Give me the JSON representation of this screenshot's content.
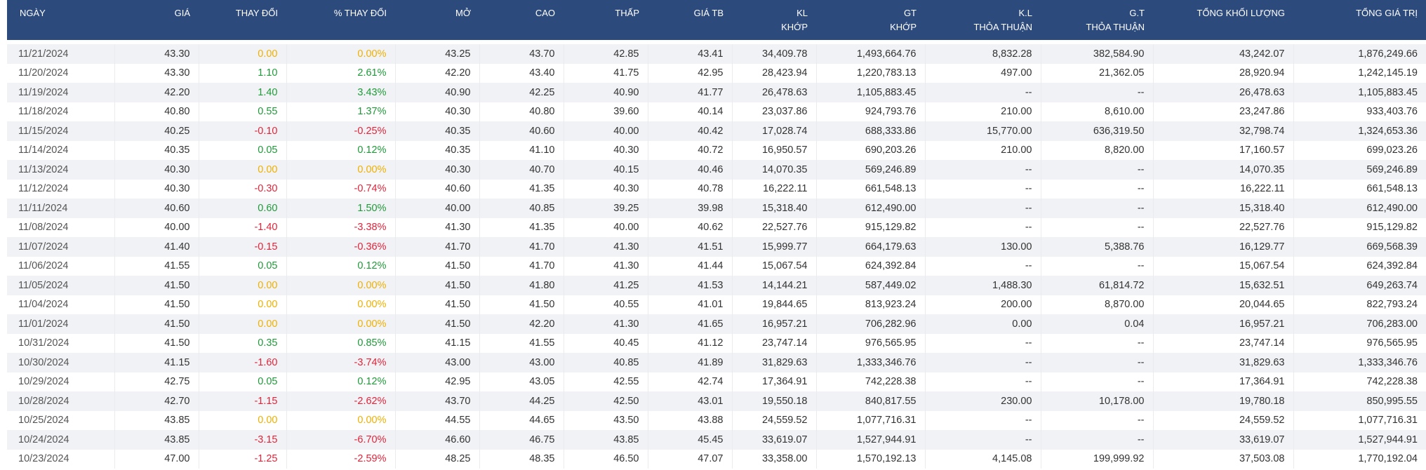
{
  "headers": {
    "date": "NGÀY",
    "price": "GIÁ",
    "change": "THAY ĐỔI",
    "pct_change": "% THAY ĐỔI",
    "open": "MỞ",
    "high": "CAO",
    "low": "THẤP",
    "avg": "GIÁ TB",
    "matched_vol_1": "KL",
    "matched_vol_2": "KHỚP",
    "matched_val_1": "GT",
    "matched_val_2": "KHỚP",
    "deal_vol_1": "K.L",
    "deal_vol_2": "THỎA THUẬN",
    "deal_val_1": "G.T",
    "deal_val_2": "THỎA THUẬN",
    "total_vol": "TỔNG KHỐI LƯỢNG",
    "total_val": "TỔNG GIÁ TRỊ"
  },
  "colors": {
    "header_bg": "#2d4a7c",
    "up": "#1f9a39",
    "down": "#e0253b",
    "flat": "#efb000"
  },
  "rows": [
    {
      "date": "11/21/2024",
      "price": "43.30",
      "change": "0.00",
      "pct": "0.00%",
      "trend": "flat",
      "open": "43.25",
      "high": "43.70",
      "low": "42.85",
      "avg": "43.41",
      "kl_khop": "34,409.78",
      "gt_khop": "1,493,664.76",
      "kl_tt": "8,832.28",
      "gt_tt": "382,584.90",
      "total_kl": "43,242.07",
      "total_gt": "1,876,249.66"
    },
    {
      "date": "11/20/2024",
      "price": "43.30",
      "change": "1.10",
      "pct": "2.61%",
      "trend": "up",
      "open": "42.20",
      "high": "43.40",
      "low": "41.75",
      "avg": "42.95",
      "kl_khop": "28,423.94",
      "gt_khop": "1,220,783.13",
      "kl_tt": "497.00",
      "gt_tt": "21,362.05",
      "total_kl": "28,920.94",
      "total_gt": "1,242,145.19"
    },
    {
      "date": "11/19/2024",
      "price": "42.20",
      "change": "1.40",
      "pct": "3.43%",
      "trend": "up",
      "open": "40.90",
      "high": "42.25",
      "low": "40.90",
      "avg": "41.77",
      "kl_khop": "26,478.63",
      "gt_khop": "1,105,883.45",
      "kl_tt": "--",
      "gt_tt": "--",
      "total_kl": "26,478.63",
      "total_gt": "1,105,883.45"
    },
    {
      "date": "11/18/2024",
      "price": "40.80",
      "change": "0.55",
      "pct": "1.37%",
      "trend": "up",
      "open": "40.30",
      "high": "40.80",
      "low": "39.60",
      "avg": "40.14",
      "kl_khop": "23,037.86",
      "gt_khop": "924,793.76",
      "kl_tt": "210.00",
      "gt_tt": "8,610.00",
      "total_kl": "23,247.86",
      "total_gt": "933,403.76"
    },
    {
      "date": "11/15/2024",
      "price": "40.25",
      "change": "-0.10",
      "pct": "-0.25%",
      "trend": "down",
      "open": "40.35",
      "high": "40.60",
      "low": "40.00",
      "avg": "40.42",
      "kl_khop": "17,028.74",
      "gt_khop": "688,333.86",
      "kl_tt": "15,770.00",
      "gt_tt": "636,319.50",
      "total_kl": "32,798.74",
      "total_gt": "1,324,653.36"
    },
    {
      "date": "11/14/2024",
      "price": "40.35",
      "change": "0.05",
      "pct": "0.12%",
      "trend": "up",
      "open": "40.35",
      "high": "41.10",
      "low": "40.30",
      "avg": "40.72",
      "kl_khop": "16,950.57",
      "gt_khop": "690,203.26",
      "kl_tt": "210.00",
      "gt_tt": "8,820.00",
      "total_kl": "17,160.57",
      "total_gt": "699,023.26"
    },
    {
      "date": "11/13/2024",
      "price": "40.30",
      "change": "0.00",
      "pct": "0.00%",
      "trend": "flat",
      "open": "40.30",
      "high": "40.70",
      "low": "40.15",
      "avg": "40.46",
      "kl_khop": "14,070.35",
      "gt_khop": "569,246.89",
      "kl_tt": "--",
      "gt_tt": "--",
      "total_kl": "14,070.35",
      "total_gt": "569,246.89"
    },
    {
      "date": "11/12/2024",
      "price": "40.30",
      "change": "-0.30",
      "pct": "-0.74%",
      "trend": "down",
      "open": "40.60",
      "high": "41.35",
      "low": "40.30",
      "avg": "40.78",
      "kl_khop": "16,222.11",
      "gt_khop": "661,548.13",
      "kl_tt": "--",
      "gt_tt": "--",
      "total_kl": "16,222.11",
      "total_gt": "661,548.13"
    },
    {
      "date": "11/11/2024",
      "price": "40.60",
      "change": "0.60",
      "pct": "1.50%",
      "trend": "up",
      "open": "40.00",
      "high": "40.85",
      "low": "39.25",
      "avg": "39.98",
      "kl_khop": "15,318.40",
      "gt_khop": "612,490.00",
      "kl_tt": "--",
      "gt_tt": "--",
      "total_kl": "15,318.40",
      "total_gt": "612,490.00"
    },
    {
      "date": "11/08/2024",
      "price": "40.00",
      "change": "-1.40",
      "pct": "-3.38%",
      "trend": "down",
      "open": "41.30",
      "high": "41.35",
      "low": "40.00",
      "avg": "40.62",
      "kl_khop": "22,527.76",
      "gt_khop": "915,129.82",
      "kl_tt": "--",
      "gt_tt": "--",
      "total_kl": "22,527.76",
      "total_gt": "915,129.82"
    },
    {
      "date": "11/07/2024",
      "price": "41.40",
      "change": "-0.15",
      "pct": "-0.36%",
      "trend": "down",
      "open": "41.70",
      "high": "41.70",
      "low": "41.30",
      "avg": "41.51",
      "kl_khop": "15,999.77",
      "gt_khop": "664,179.63",
      "kl_tt": "130.00",
      "gt_tt": "5,388.76",
      "total_kl": "16,129.77",
      "total_gt": "669,568.39"
    },
    {
      "date": "11/06/2024",
      "price": "41.55",
      "change": "0.05",
      "pct": "0.12%",
      "trend": "up",
      "open": "41.50",
      "high": "41.70",
      "low": "41.30",
      "avg": "41.44",
      "kl_khop": "15,067.54",
      "gt_khop": "624,392.84",
      "kl_tt": "--",
      "gt_tt": "--",
      "total_kl": "15,067.54",
      "total_gt": "624,392.84"
    },
    {
      "date": "11/05/2024",
      "price": "41.50",
      "change": "0.00",
      "pct": "0.00%",
      "trend": "flat",
      "open": "41.50",
      "high": "41.80",
      "low": "41.25",
      "avg": "41.53",
      "kl_khop": "14,144.21",
      "gt_khop": "587,449.02",
      "kl_tt": "1,488.30",
      "gt_tt": "61,814.72",
      "total_kl": "15,632.51",
      "total_gt": "649,263.74"
    },
    {
      "date": "11/04/2024",
      "price": "41.50",
      "change": "0.00",
      "pct": "0.00%",
      "trend": "flat",
      "open": "41.50",
      "high": "41.50",
      "low": "40.55",
      "avg": "41.01",
      "kl_khop": "19,844.65",
      "gt_khop": "813,923.24",
      "kl_tt": "200.00",
      "gt_tt": "8,870.00",
      "total_kl": "20,044.65",
      "total_gt": "822,793.24"
    },
    {
      "date": "11/01/2024",
      "price": "41.50",
      "change": "0.00",
      "pct": "0.00%",
      "trend": "flat",
      "open": "41.50",
      "high": "42.20",
      "low": "41.30",
      "avg": "41.65",
      "kl_khop": "16,957.21",
      "gt_khop": "706,282.96",
      "kl_tt": "0.00",
      "gt_tt": "0.04",
      "total_kl": "16,957.21",
      "total_gt": "706,283.00"
    },
    {
      "date": "10/31/2024",
      "price": "41.50",
      "change": "0.35",
      "pct": "0.85%",
      "trend": "up",
      "open": "41.15",
      "high": "41.55",
      "low": "40.45",
      "avg": "41.12",
      "kl_khop": "23,747.14",
      "gt_khop": "976,565.95",
      "kl_tt": "--",
      "gt_tt": "--",
      "total_kl": "23,747.14",
      "total_gt": "976,565.95"
    },
    {
      "date": "10/30/2024",
      "price": "41.15",
      "change": "-1.60",
      "pct": "-3.74%",
      "trend": "down",
      "open": "43.00",
      "high": "43.00",
      "low": "40.85",
      "avg": "41.89",
      "kl_khop": "31,829.63",
      "gt_khop": "1,333,346.76",
      "kl_tt": "--",
      "gt_tt": "--",
      "total_kl": "31,829.63",
      "total_gt": "1,333,346.76"
    },
    {
      "date": "10/29/2024",
      "price": "42.75",
      "change": "0.05",
      "pct": "0.12%",
      "trend": "up",
      "open": "42.95",
      "high": "43.05",
      "low": "42.55",
      "avg": "42.74",
      "kl_khop": "17,364.91",
      "gt_khop": "742,228.38",
      "kl_tt": "--",
      "gt_tt": "--",
      "total_kl": "17,364.91",
      "total_gt": "742,228.38"
    },
    {
      "date": "10/28/2024",
      "price": "42.70",
      "change": "-1.15",
      "pct": "-2.62%",
      "trend": "down",
      "open": "43.70",
      "high": "44.25",
      "low": "42.50",
      "avg": "43.01",
      "kl_khop": "19,550.18",
      "gt_khop": "840,817.55",
      "kl_tt": "230.00",
      "gt_tt": "10,178.00",
      "total_kl": "19,780.18",
      "total_gt": "850,995.55"
    },
    {
      "date": "10/25/2024",
      "price": "43.85",
      "change": "0.00",
      "pct": "0.00%",
      "trend": "flat",
      "open": "44.55",
      "high": "44.65",
      "low": "43.50",
      "avg": "43.88",
      "kl_khop": "24,559.52",
      "gt_khop": "1,077,716.31",
      "kl_tt": "--",
      "gt_tt": "--",
      "total_kl": "24,559.52",
      "total_gt": "1,077,716.31"
    },
    {
      "date": "10/24/2024",
      "price": "43.85",
      "change": "-3.15",
      "pct": "-6.70%",
      "trend": "down",
      "open": "46.60",
      "high": "46.75",
      "low": "43.85",
      "avg": "45.45",
      "kl_khop": "33,619.07",
      "gt_khop": "1,527,944.91",
      "kl_tt": "--",
      "gt_tt": "--",
      "total_kl": "33,619.07",
      "total_gt": "1,527,944.91"
    },
    {
      "date": "10/23/2024",
      "price": "47.00",
      "change": "-1.25",
      "pct": "-2.59%",
      "trend": "down",
      "open": "48.25",
      "high": "48.35",
      "low": "46.50",
      "avg": "47.07",
      "kl_khop": "33,358.00",
      "gt_khop": "1,570,192.13",
      "kl_tt": "4,145.08",
      "gt_tt": "199,999.92",
      "total_kl": "37,503.08",
      "total_gt": "1,770,192.04"
    }
  ]
}
